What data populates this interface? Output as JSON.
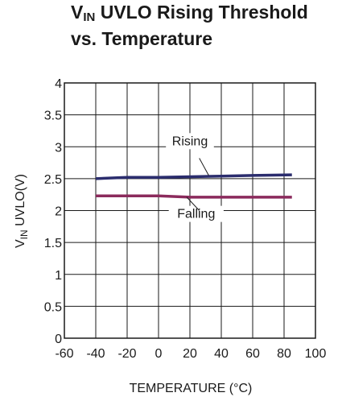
{
  "chart_data": {
    "type": "line",
    "title_line1_main": "V",
    "title_line1_sub": "IN",
    "title_line1_rest": " UVLO Rising Threshold",
    "title_line2": "vs. Temperature",
    "ylabel_main": "V",
    "ylabel_sub": "IN",
    "ylabel_rest": " UVLO(V)",
    "xlabel": "TEMPERATURE (°C)",
    "xlim": [
      -60,
      100
    ],
    "ylim": [
      0,
      4
    ],
    "xticks": [
      "-60",
      "-40",
      "-20",
      "0",
      "20",
      "40",
      "60",
      "80",
      "100"
    ],
    "yticks": [
      "0",
      "0.5",
      "1",
      "1.5",
      "2",
      "2.5",
      "3",
      "3.5",
      "4"
    ],
    "grid": true,
    "series": [
      {
        "name": "Rising",
        "color": "#2b2d6e",
        "x": [
          -40,
          -20,
          0,
          20,
          40,
          60,
          85
        ],
        "y": [
          2.5,
          2.52,
          2.52,
          2.53,
          2.54,
          2.55,
          2.56
        ]
      },
      {
        "name": "Falling",
        "color": "#8b2a5c",
        "x": [
          -40,
          -20,
          0,
          20,
          40,
          60,
          85
        ],
        "y": [
          2.23,
          2.23,
          2.23,
          2.21,
          2.21,
          2.21,
          2.21
        ]
      }
    ]
  }
}
